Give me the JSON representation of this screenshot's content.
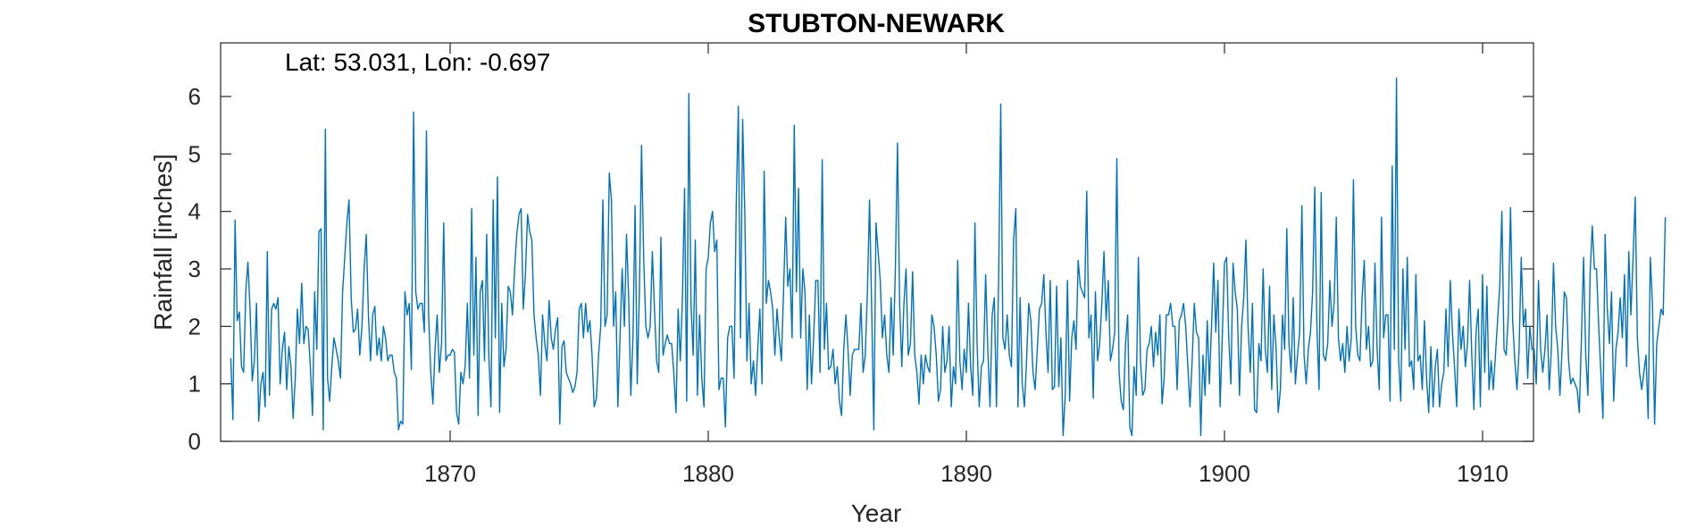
{
  "chart_data": {
    "type": "line",
    "title": "STUBTON-NEWARK",
    "annotation": "Lat: 53.031, Lon: -0.697",
    "xlabel": "Year",
    "ylabel": "Rainfall [inches]",
    "xlim": [
      1861.2,
      1912.5
    ],
    "ylim": [
      0,
      7
    ],
    "xticks": [
      1870,
      1880,
      1890,
      1900,
      1910
    ],
    "yticks": [
      0,
      1,
      2,
      3,
      4,
      5,
      6
    ],
    "grid": false,
    "line_color": "#0072BD",
    "axis_color": "#262626",
    "series": [
      {
        "x_start": 1861.5,
        "x_step": 0.08333,
        "values": [
          1.45,
          0.38,
          3.85,
          2.1,
          2.25,
          1.3,
          1.2,
          2.6,
          3.12,
          2.3,
          1.05,
          1.4,
          2.4,
          0.35,
          1.0,
          1.2,
          0.6,
          3.3,
          0.8,
          2.3,
          2.4,
          2.3,
          2.5,
          1.0,
          1.6,
          1.9,
          0.9,
          1.65,
          1.3,
          0.4,
          1.1,
          2.3,
          1.7,
          2.75,
          1.7,
          2.0,
          1.95,
          1.3,
          0.45,
          2.6,
          1.6,
          3.65,
          3.7,
          0.2,
          5.43,
          1.1,
          0.7,
          1.3,
          1.8,
          1.6,
          1.4,
          1.1,
          2.6,
          3.2,
          3.8,
          4.2,
          2.5,
          1.9,
          1.95,
          2.3,
          1.5,
          2.0,
          3.0,
          3.6,
          2.2,
          1.4,
          2.2,
          2.35,
          1.5,
          1.8,
          1.4,
          2.0,
          1.8,
          1.4,
          1.5,
          1.5,
          1.2,
          1.1,
          0.2,
          0.35,
          0.3,
          2.6,
          2.2,
          2.4,
          1.25,
          5.73,
          2.6,
          2.3,
          2.4,
          2.4,
          1.9,
          5.4,
          2.2,
          1.2,
          0.65,
          1.6,
          2.2,
          1.2,
          1.7,
          3.8,
          1.4,
          1.5,
          1.5,
          1.6,
          1.55,
          0.5,
          0.3,
          1.2,
          1.0,
          1.3,
          2.4,
          1.1,
          4.05,
          1.5,
          3.2,
          0.45,
          2.6,
          2.8,
          1.4,
          3.6,
          1.5,
          0.6,
          4.2,
          1.8,
          4.6,
          0.5,
          2.4,
          1.3,
          1.6,
          2.7,
          2.6,
          2.2,
          3.0,
          3.6,
          3.95,
          4.05,
          2.3,
          2.9,
          3.95,
          3.65,
          3.5,
          2.2,
          1.8,
          1.5,
          0.8,
          2.2,
          1.7,
          1.4,
          2.45,
          1.8,
          1.6,
          1.95,
          2.15,
          0.3,
          1.65,
          1.75,
          1.2,
          1.1,
          1.0,
          0.85,
          0.95,
          1.2,
          2.3,
          2.4,
          1.8,
          2.4,
          1.9,
          2.1,
          1.5,
          0.6,
          0.75,
          1.5,
          2.0,
          4.2,
          2.0,
          2.2,
          4.67,
          4.2,
          2.0,
          2.6,
          0.6,
          1.8,
          3.0,
          2.0,
          3.6,
          2.5,
          0.8,
          1.8,
          4.1,
          1.0,
          2.6,
          5.15,
          3.2,
          2.0,
          1.8,
          2.0,
          3.3,
          2.3,
          1.4,
          1.2,
          3.55,
          1.5,
          1.7,
          1.85,
          1.7,
          1.7,
          1.2,
          0.5,
          2.3,
          1.4,
          2.5,
          4.4,
          0.7,
          6.05,
          2.4,
          1.5,
          3.5,
          0.8,
          2.2,
          1.1,
          0.6,
          3.0,
          3.2,
          3.8,
          4.0,
          3.3,
          3.5,
          0.9,
          1.1,
          1.1,
          0.25,
          1.8,
          2.0,
          2.0,
          1.1,
          4.1,
          5.83,
          1.8,
          5.6,
          4.0,
          1.4,
          2.4,
          1.0,
          1.4,
          0.8,
          1.6,
          2.3,
          1.0,
          4.7,
          2.4,
          2.8,
          2.6,
          2.3,
          1.5,
          2.3,
          1.8,
          1.4,
          2.6,
          3.9,
          2.7,
          3.0,
          1.8,
          5.5,
          2.6,
          4.4,
          1.8,
          3.0,
          2.6,
          0.9,
          2.2,
          1.0,
          1.8,
          2.8,
          2.8,
          1.2,
          4.9,
          1.6,
          2.4,
          1.25,
          1.3,
          1.6,
          1.0,
          1.3,
          0.7,
          0.45,
          1.6,
          2.2,
          1.6,
          0.8,
          1.5,
          1.6,
          1.6,
          1.6,
          2.4,
          1.2,
          1.5,
          2.6,
          4.2,
          2.3,
          0.2,
          3.8,
          3.3,
          2.8,
          1.8,
          2.2,
          1.5,
          1.2,
          2.5,
          1.5,
          3.0,
          5.19,
          2.4,
          1.3,
          2.4,
          3.0,
          1.5,
          1.7,
          2.95,
          1.5,
          1.2,
          0.65,
          1.5,
          1.0,
          1.5,
          1.3,
          1.2,
          2.2,
          2.0,
          1.5,
          0.7,
          0.9,
          2.0,
          1.2,
          1.4,
          2.0,
          0.6,
          1.3,
          1.0,
          3.15,
          1.4,
          0.9,
          1.6,
          1.2,
          2.4,
          1.3,
          0.8,
          3.8,
          1.7,
          0.6,
          1.3,
          1.4,
          2.9,
          1.6,
          0.6,
          2.2,
          2.5,
          0.6,
          2.8,
          5.87,
          1.8,
          1.6,
          2.2,
          1.5,
          1.3,
          3.5,
          4.05,
          0.6,
          2.5,
          1.0,
          0.6,
          1.4,
          2.4,
          2.1,
          1.2,
          0.9,
          1.6,
          2.3,
          2.4,
          2.9,
          1.9,
          1.2,
          2.8,
          0.9,
          0.95,
          2.7,
          0.95,
          1.8,
          0.1,
          0.8,
          2.8,
          0.7,
          1.8,
          2.1,
          1.6,
          3.15,
          2.7,
          2.6,
          2.5,
          4.35,
          1.8,
          2.2,
          0.75,
          2.6,
          1.4,
          1.7,
          2.4,
          3.3,
          2.1,
          2.8,
          1.4,
          1.6,
          1.9,
          4.92,
          1.2,
          0.7,
          0.55,
          1.7,
          2.2,
          0.25,
          0.1,
          1.3,
          0.8,
          3.2,
          1.4,
          0.8,
          0.9,
          1.6,
          1.7,
          2.0,
          1.3,
          1.9,
          1.5,
          2.2,
          0.65,
          1.1,
          2.2,
          2.2,
          2.4,
          2.0,
          2.0,
          0.9,
          2.1,
          2.2,
          2.4,
          2.0,
          1.3,
          0.6,
          1.4,
          2.4,
          1.9,
          1.8,
          0.1,
          1.5,
          0.8,
          2.1,
          1.0,
          2.0,
          3.1,
          1.9,
          2.8,
          0.6,
          1.8,
          3.1,
          3.2,
          1.8,
          1.0,
          3.1,
          2.6,
          2.3,
          0.8,
          2.0,
          2.5,
          3.5,
          2.0,
          1.2,
          2.4,
          0.55,
          0.5,
          1.7,
          1.4,
          3.0,
          1.6,
          1.2,
          2.7,
          0.9,
          2.2,
          1.6,
          0.5,
          0.9,
          2.2,
          1.6,
          3.7,
          1.7,
          1.2,
          2.5,
          1.0,
          1.5,
          1.9,
          4.1,
          1.5,
          1.0,
          1.6,
          1.9,
          2.6,
          4.42,
          2.0,
          0.9,
          4.33,
          1.5,
          1.4,
          1.7,
          2.8,
          2.0,
          2.4,
          3.9,
          1.8,
          1.4,
          1.7,
          1.2,
          2.0,
          1.4,
          1.8,
          4.55,
          2.0,
          1.5,
          1.4,
          2.5,
          3.15,
          1.6,
          2.0,
          1.3,
          1.4,
          3.1,
          1.6,
          0.9,
          3.9,
          1.8,
          2.2,
          2.2,
          0.7,
          4.79,
          1.6,
          6.32,
          1.4,
          0.7,
          3.0,
          1.6,
          3.2,
          1.3,
          1.4,
          0.9,
          2.9,
          1.4,
          1.5,
          0.9,
          2.1,
          1.1,
          0.5,
          1.65,
          0.6,
          1.3,
          1.6,
          0.6,
          1.0,
          1.2,
          2.3,
          1.3,
          2.8,
          1.9,
          1.3,
          0.6,
          2.3,
          1.6,
          2.0,
          1.3,
          1.7,
          2.8,
          1.5,
          0.55,
          1.9,
          2.3,
          0.6,
          2.9,
          1.2,
          2.7,
          0.9,
          1.4,
          0.9,
          1.5,
          2.1,
          2.7,
          4.0,
          1.6,
          1.5,
          2.2,
          4.07,
          2.1,
          1.4,
          0.9,
          1.6,
          3.2,
          2.0,
          2.3,
          1.1,
          2.0,
          1.6,
          1.6,
          1.0,
          2.8,
          1.6,
          1.2,
          1.6,
          2.2,
          0.9,
          1.6,
          3.1,
          2.0,
          1.6,
          0.8,
          1.6,
          2.6,
          2.5,
          1.4,
          1.0,
          1.1,
          1.0,
          0.9,
          0.5,
          1.8,
          3.2,
          1.5,
          0.8,
          2.9,
          3.75,
          3.0,
          3.0,
          2.0,
          1.2,
          0.4,
          3.6,
          2.3,
          1.7,
          2.6,
          0.7,
          1.6,
          1.9,
          2.5,
          1.8,
          2.9,
          1.3,
          3.3,
          2.2,
          3.2,
          4.25,
          1.8,
          1.2,
          0.9,
          1.2,
          1.5,
          0.4,
          3.2,
          2.4,
          0.3,
          1.7,
          2.0,
          2.3,
          2.2,
          3.9
        ]
      }
    ]
  }
}
